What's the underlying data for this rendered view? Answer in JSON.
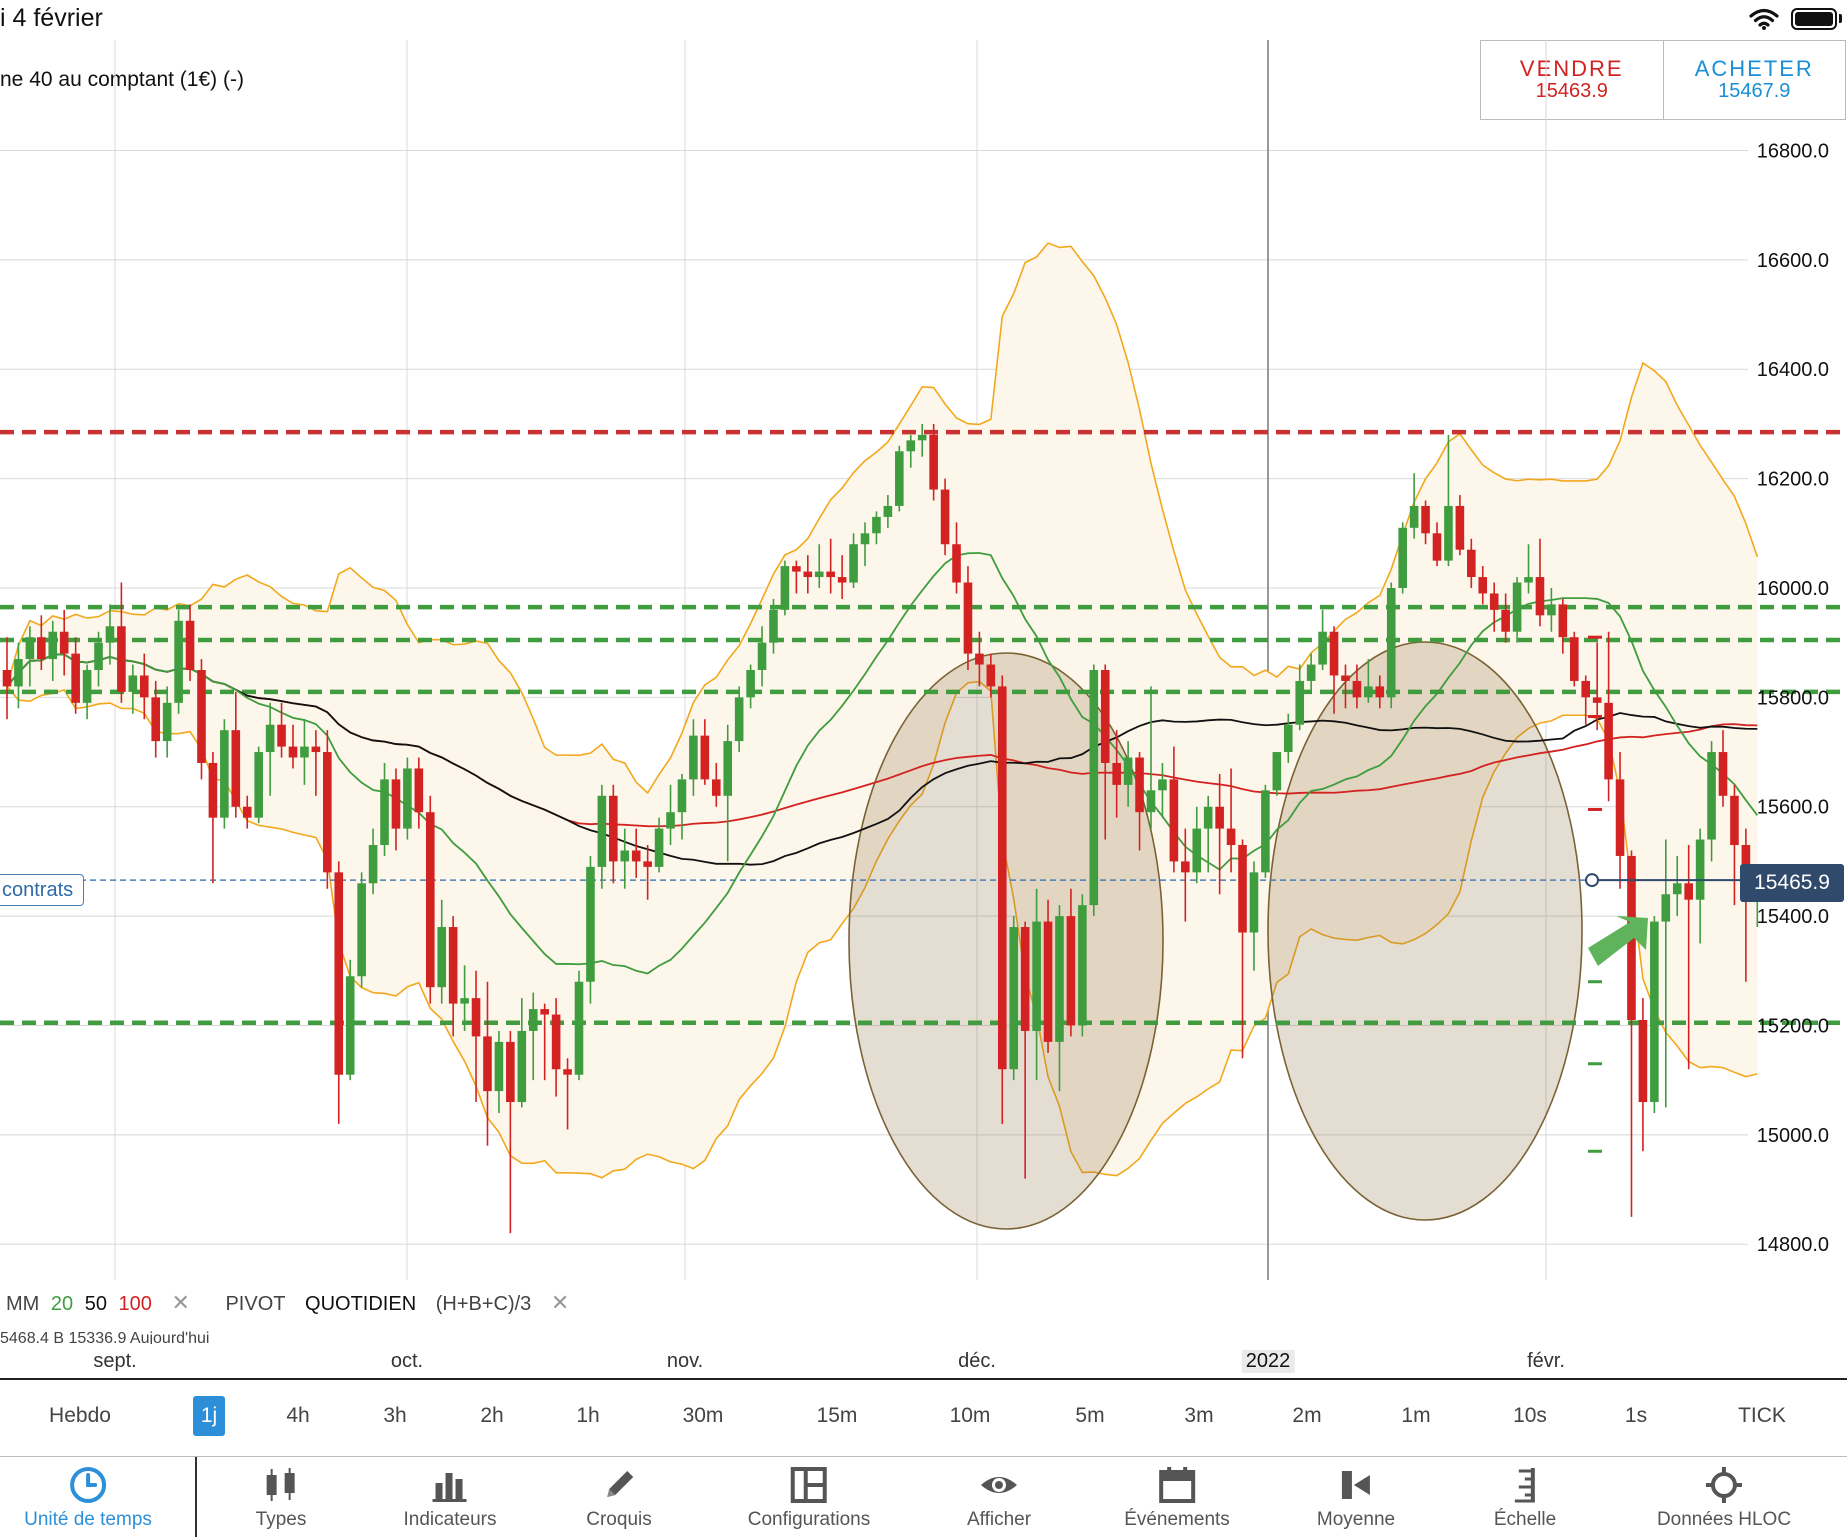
{
  "status": {
    "date": "i 4 février"
  },
  "instrument": {
    "name": "ne 40 au comptant (1€) (-)"
  },
  "trade": {
    "sell_label": "VENDRE",
    "sell_price": "15463.9",
    "buy_label": "ACHETER",
    "buy_price": "15467.9"
  },
  "price_axis": {
    "ticks": [
      "16800.0",
      "16600.0",
      "16400.0",
      "16200.0",
      "16000.0",
      "15800.0",
      "15600.0",
      "15400.0",
      "15200.0",
      "15000.0",
      "14800.0"
    ]
  },
  "current_price": "15465.9",
  "position_label": "contrats",
  "indicators": {
    "ma_label": "MM",
    "ma_20": "20",
    "ma_50": "50",
    "ma_100": "100",
    "pivot_label": "PIVOT",
    "pivot_period": "QUOTIDIEN",
    "pivot_formula": "(H+B+C)/3",
    "remove_glyph": "✕",
    "sub_text": "5468.4   B 15336.9   Aujourd'hui"
  },
  "date_axis": {
    "labels": [
      "sept.",
      "oct.",
      "nov.",
      "déc.",
      "2022",
      "févr."
    ]
  },
  "timeframes": {
    "items": [
      "Hebdo",
      "1j",
      "4h",
      "3h",
      "2h",
      "1h",
      "30m",
      "15m",
      "10m",
      "5m",
      "3m",
      "2m",
      "1m",
      "10s",
      "1s",
      "TICK"
    ],
    "active": "1j"
  },
  "toolbar": {
    "items": [
      "Unité de temps",
      "Types",
      "Indicateurs",
      "Croquis",
      "Configurations",
      "Afficher",
      "Événements",
      "Moyenne",
      "Échelle",
      "Données HLOC"
    ]
  },
  "colors": {
    "up": "#3f9d3f",
    "down": "#d32222",
    "bollinger": "#f2a81d",
    "ma20": "#3f9d3f",
    "ma50": "#111111",
    "ma100": "#d32222",
    "resistance": "#c83232",
    "support": "#3f9d3f",
    "accent": "#2e8fd9"
  },
  "chart_data": {
    "type": "candlestick",
    "y_axis_ticks": [
      16800,
      16600,
      16400,
      16200,
      16000,
      15800,
      15600,
      15400,
      15200,
      15000,
      14800
    ],
    "ylim": [
      14780,
      16900
    ],
    "x_labels": [
      "sept.",
      "oct.",
      "nov.",
      "déc.",
      "2022",
      "févr."
    ],
    "current_price": 15465.9,
    "resistance_line": 16285,
    "support_lines": [
      15965,
      15905,
      15810,
      15205
    ],
    "pivot_ticks_red": [
      15910,
      15765,
      15595
    ],
    "pivot_ticks_green": [
      15280,
      15130,
      14970
    ],
    "candles": [
      {
        "o": 15850,
        "h": 15910,
        "l": 15760,
        "c": 15820
      },
      {
        "o": 15820,
        "h": 15900,
        "l": 15780,
        "c": 15870
      },
      {
        "o": 15870,
        "h": 15930,
        "l": 15820,
        "c": 15910
      },
      {
        "o": 15910,
        "h": 15950,
        "l": 15850,
        "c": 15870
      },
      {
        "o": 15870,
        "h": 15940,
        "l": 15830,
        "c": 15920
      },
      {
        "o": 15920,
        "h": 15960,
        "l": 15840,
        "c": 15880
      },
      {
        "o": 15880,
        "h": 15910,
        "l": 15770,
        "c": 15790
      },
      {
        "o": 15790,
        "h": 15860,
        "l": 15760,
        "c": 15850
      },
      {
        "o": 15850,
        "h": 15920,
        "l": 15820,
        "c": 15900
      },
      {
        "o": 15900,
        "h": 15970,
        "l": 15860,
        "c": 15930
      },
      {
        "o": 15930,
        "h": 16010,
        "l": 15790,
        "c": 15810
      },
      {
        "o": 15810,
        "h": 15860,
        "l": 15770,
        "c": 15840
      },
      {
        "o": 15840,
        "h": 15880,
        "l": 15760,
        "c": 15800
      },
      {
        "o": 15800,
        "h": 15830,
        "l": 15690,
        "c": 15720
      },
      {
        "o": 15720,
        "h": 15820,
        "l": 15690,
        "c": 15790
      },
      {
        "o": 15790,
        "h": 15960,
        "l": 15770,
        "c": 15940
      },
      {
        "o": 15940,
        "h": 15970,
        "l": 15830,
        "c": 15850
      },
      {
        "o": 15850,
        "h": 15870,
        "l": 15650,
        "c": 15680
      },
      {
        "o": 15680,
        "h": 15700,
        "l": 15460,
        "c": 15580
      },
      {
        "o": 15580,
        "h": 15760,
        "l": 15560,
        "c": 15740
      },
      {
        "o": 15740,
        "h": 15810,
        "l": 15580,
        "c": 15600
      },
      {
        "o": 15600,
        "h": 15620,
        "l": 15560,
        "c": 15580
      },
      {
        "o": 15580,
        "h": 15710,
        "l": 15570,
        "c": 15700
      },
      {
        "o": 15700,
        "h": 15790,
        "l": 15620,
        "c": 15750
      },
      {
        "o": 15750,
        "h": 15790,
        "l": 15690,
        "c": 15710
      },
      {
        "o": 15710,
        "h": 15750,
        "l": 15670,
        "c": 15690
      },
      {
        "o": 15690,
        "h": 15760,
        "l": 15640,
        "c": 15710
      },
      {
        "o": 15710,
        "h": 15740,
        "l": 15620,
        "c": 15700
      },
      {
        "o": 15700,
        "h": 15740,
        "l": 15450,
        "c": 15480
      },
      {
        "o": 15480,
        "h": 15500,
        "l": 15020,
        "c": 15110
      },
      {
        "o": 15110,
        "h": 15320,
        "l": 15100,
        "c": 15290
      },
      {
        "o": 15290,
        "h": 15480,
        "l": 15270,
        "c": 15460
      },
      {
        "o": 15460,
        "h": 15560,
        "l": 15440,
        "c": 15530
      },
      {
        "o": 15530,
        "h": 15680,
        "l": 15510,
        "c": 15650
      },
      {
        "o": 15650,
        "h": 15670,
        "l": 15520,
        "c": 15560
      },
      {
        "o": 15560,
        "h": 15690,
        "l": 15540,
        "c": 15670
      },
      {
        "o": 15670,
        "h": 15690,
        "l": 15560,
        "c": 15590
      },
      {
        "o": 15590,
        "h": 15620,
        "l": 15240,
        "c": 15270
      },
      {
        "o": 15270,
        "h": 15430,
        "l": 15240,
        "c": 15380
      },
      {
        "o": 15380,
        "h": 15400,
        "l": 15180,
        "c": 15240
      },
      {
        "o": 15240,
        "h": 15310,
        "l": 15190,
        "c": 15250
      },
      {
        "o": 15250,
        "h": 15300,
        "l": 15060,
        "c": 15180
      },
      {
        "o": 15180,
        "h": 15280,
        "l": 14980,
        "c": 15080
      },
      {
        "o": 15080,
        "h": 15190,
        "l": 15040,
        "c": 15170
      },
      {
        "o": 15170,
        "h": 15190,
        "l": 14820,
        "c": 15060
      },
      {
        "o": 15060,
        "h": 15250,
        "l": 15050,
        "c": 15190
      },
      {
        "o": 15190,
        "h": 15260,
        "l": 15100,
        "c": 15230
      },
      {
        "o": 15230,
        "h": 15240,
        "l": 15100,
        "c": 15220
      },
      {
        "o": 15220,
        "h": 15250,
        "l": 15070,
        "c": 15120
      },
      {
        "o": 15120,
        "h": 15140,
        "l": 15010,
        "c": 15110
      },
      {
        "o": 15110,
        "h": 15300,
        "l": 15100,
        "c": 15280
      },
      {
        "o": 15280,
        "h": 15510,
        "l": 15240,
        "c": 15490
      },
      {
        "o": 15490,
        "h": 15640,
        "l": 15450,
        "c": 15620
      },
      {
        "o": 15620,
        "h": 15640,
        "l": 15460,
        "c": 15500
      },
      {
        "o": 15500,
        "h": 15560,
        "l": 15450,
        "c": 15520
      },
      {
        "o": 15520,
        "h": 15560,
        "l": 15470,
        "c": 15500
      },
      {
        "o": 15500,
        "h": 15530,
        "l": 15430,
        "c": 15490
      },
      {
        "o": 15490,
        "h": 15580,
        "l": 15480,
        "c": 15560
      },
      {
        "o": 15560,
        "h": 15640,
        "l": 15530,
        "c": 15590
      },
      {
        "o": 15590,
        "h": 15660,
        "l": 15540,
        "c": 15650
      },
      {
        "o": 15650,
        "h": 15760,
        "l": 15620,
        "c": 15730
      },
      {
        "o": 15730,
        "h": 15760,
        "l": 15640,
        "c": 15650
      },
      {
        "o": 15650,
        "h": 15680,
        "l": 15600,
        "c": 15620
      },
      {
        "o": 15620,
        "h": 15750,
        "l": 15500,
        "c": 15720
      },
      {
        "o": 15720,
        "h": 15820,
        "l": 15700,
        "c": 15800
      },
      {
        "o": 15800,
        "h": 15860,
        "l": 15780,
        "c": 15850
      },
      {
        "o": 15850,
        "h": 15930,
        "l": 15820,
        "c": 15900
      },
      {
        "o": 15900,
        "h": 15980,
        "l": 15880,
        "c": 15960
      },
      {
        "o": 15960,
        "h": 16050,
        "l": 15950,
        "c": 16040
      },
      {
        "o": 16040,
        "h": 16050,
        "l": 15990,
        "c": 16030
      },
      {
        "o": 16030,
        "h": 16060,
        "l": 15990,
        "c": 16020
      },
      {
        "o": 16020,
        "h": 16080,
        "l": 16000,
        "c": 16030
      },
      {
        "o": 16030,
        "h": 16090,
        "l": 15990,
        "c": 16020
      },
      {
        "o": 16020,
        "h": 16060,
        "l": 15980,
        "c": 16010
      },
      {
        "o": 16010,
        "h": 16100,
        "l": 16000,
        "c": 16080
      },
      {
        "o": 16080,
        "h": 16120,
        "l": 16040,
        "c": 16100
      },
      {
        "o": 16100,
        "h": 16140,
        "l": 16080,
        "c": 16130
      },
      {
        "o": 16130,
        "h": 16170,
        "l": 16110,
        "c": 16150
      },
      {
        "o": 16150,
        "h": 16260,
        "l": 16140,
        "c": 16250
      },
      {
        "o": 16250,
        "h": 16280,
        "l": 16220,
        "c": 16270
      },
      {
        "o": 16270,
        "h": 16300,
        "l": 16240,
        "c": 16280
      },
      {
        "o": 16280,
        "h": 16300,
        "l": 16160,
        "c": 16180
      },
      {
        "o": 16180,
        "h": 16200,
        "l": 16060,
        "c": 16080
      },
      {
        "o": 16080,
        "h": 16120,
        "l": 15990,
        "c": 16010
      },
      {
        "o": 16010,
        "h": 16040,
        "l": 15850,
        "c": 15880
      },
      {
        "o": 15880,
        "h": 15920,
        "l": 15820,
        "c": 15860
      },
      {
        "o": 15860,
        "h": 15880,
        "l": 15800,
        "c": 15820
      },
      {
        "o": 15820,
        "h": 15840,
        "l": 15020,
        "c": 15120
      },
      {
        "o": 15120,
        "h": 15400,
        "l": 15100,
        "c": 15380
      },
      {
        "o": 15380,
        "h": 15390,
        "l": 14920,
        "c": 15190
      },
      {
        "o": 15190,
        "h": 15450,
        "l": 15100,
        "c": 15390
      },
      {
        "o": 15390,
        "h": 15430,
        "l": 15150,
        "c": 15170
      },
      {
        "o": 15170,
        "h": 15420,
        "l": 15080,
        "c": 15400
      },
      {
        "o": 15400,
        "h": 15450,
        "l": 15180,
        "c": 15200
      },
      {
        "o": 15200,
        "h": 15440,
        "l": 15180,
        "c": 15420
      },
      {
        "o": 15420,
        "h": 15860,
        "l": 15400,
        "c": 15850
      },
      {
        "o": 15850,
        "h": 15860,
        "l": 15540,
        "c": 15680
      },
      {
        "o": 15680,
        "h": 15740,
        "l": 15580,
        "c": 15640
      },
      {
        "o": 15640,
        "h": 15720,
        "l": 15600,
        "c": 15690
      },
      {
        "o": 15690,
        "h": 15700,
        "l": 15520,
        "c": 15590
      },
      {
        "o": 15590,
        "h": 15820,
        "l": 15560,
        "c": 15630
      },
      {
        "o": 15630,
        "h": 15680,
        "l": 15580,
        "c": 15650
      },
      {
        "o": 15650,
        "h": 15710,
        "l": 15480,
        "c": 15500
      },
      {
        "o": 15500,
        "h": 15560,
        "l": 15390,
        "c": 15480
      },
      {
        "o": 15480,
        "h": 15600,
        "l": 15460,
        "c": 15560
      },
      {
        "o": 15560,
        "h": 15620,
        "l": 15480,
        "c": 15600
      },
      {
        "o": 15600,
        "h": 15660,
        "l": 15440,
        "c": 15560
      },
      {
        "o": 15560,
        "h": 15670,
        "l": 15480,
        "c": 15530
      },
      {
        "o": 15530,
        "h": 15540,
        "l": 15140,
        "c": 15370
      },
      {
        "o": 15370,
        "h": 15500,
        "l": 15300,
        "c": 15480
      },
      {
        "o": 15480,
        "h": 15640,
        "l": 15470,
        "c": 15630
      },
      {
        "o": 15630,
        "h": 15700,
        "l": 15620,
        "c": 15700
      },
      {
        "o": 15700,
        "h": 15770,
        "l": 15680,
        "c": 15750
      },
      {
        "o": 15750,
        "h": 15860,
        "l": 15740,
        "c": 15830
      },
      {
        "o": 15830,
        "h": 15880,
        "l": 15810,
        "c": 15860
      },
      {
        "o": 15860,
        "h": 15960,
        "l": 15850,
        "c": 15920
      },
      {
        "o": 15920,
        "h": 15930,
        "l": 15770,
        "c": 15840
      },
      {
        "o": 15840,
        "h": 15860,
        "l": 15780,
        "c": 15830
      },
      {
        "o": 15830,
        "h": 15860,
        "l": 15780,
        "c": 15800
      },
      {
        "o": 15800,
        "h": 15870,
        "l": 15790,
        "c": 15820
      },
      {
        "o": 15820,
        "h": 15840,
        "l": 15780,
        "c": 15800
      },
      {
        "o": 15800,
        "h": 16010,
        "l": 15780,
        "c": 16000
      },
      {
        "o": 16000,
        "h": 16120,
        "l": 15990,
        "c": 16110
      },
      {
        "o": 16110,
        "h": 16210,
        "l": 16090,
        "c": 16150
      },
      {
        "o": 16150,
        "h": 16160,
        "l": 16080,
        "c": 16100
      },
      {
        "o": 16100,
        "h": 16120,
        "l": 16040,
        "c": 16050
      },
      {
        "o": 16050,
        "h": 16280,
        "l": 16040,
        "c": 16150
      },
      {
        "o": 16150,
        "h": 16170,
        "l": 16060,
        "c": 16070
      },
      {
        "o": 16070,
        "h": 16090,
        "l": 16000,
        "c": 16020
      },
      {
        "o": 16020,
        "h": 16040,
        "l": 15970,
        "c": 15990
      },
      {
        "o": 15990,
        "h": 16010,
        "l": 15920,
        "c": 15960
      },
      {
        "o": 15960,
        "h": 15990,
        "l": 15900,
        "c": 15920
      },
      {
        "o": 15920,
        "h": 16020,
        "l": 15900,
        "c": 16010
      },
      {
        "o": 16010,
        "h": 16080,
        "l": 15990,
        "c": 16020
      },
      {
        "o": 16020,
        "h": 16090,
        "l": 15930,
        "c": 15950
      },
      {
        "o": 15950,
        "h": 16000,
        "l": 15920,
        "c": 15970
      },
      {
        "o": 15970,
        "h": 15980,
        "l": 15880,
        "c": 15910
      },
      {
        "o": 15910,
        "h": 15920,
        "l": 15820,
        "c": 15830
      },
      {
        "o": 15830,
        "h": 15840,
        "l": 15750,
        "c": 15800
      },
      {
        "o": 15800,
        "h": 15900,
        "l": 15740,
        "c": 15790
      },
      {
        "o": 15790,
        "h": 15920,
        "l": 15610,
        "c": 15650
      },
      {
        "o": 15650,
        "h": 15700,
        "l": 15450,
        "c": 15510
      },
      {
        "o": 15510,
        "h": 15520,
        "l": 14850,
        "c": 15210
      },
      {
        "o": 15210,
        "h": 15250,
        "l": 14970,
        "c": 15060
      },
      {
        "o": 15060,
        "h": 15400,
        "l": 15040,
        "c": 15390
      },
      {
        "o": 15390,
        "h": 15540,
        "l": 15050,
        "c": 15440
      },
      {
        "o": 15440,
        "h": 15510,
        "l": 15400,
        "c": 15460
      },
      {
        "o": 15460,
        "h": 15530,
        "l": 15120,
        "c": 15430
      },
      {
        "o": 15430,
        "h": 15560,
        "l": 15350,
        "c": 15540
      },
      {
        "o": 15540,
        "h": 15720,
        "l": 15500,
        "c": 15700
      },
      {
        "o": 15700,
        "h": 15740,
        "l": 15600,
        "c": 15620
      },
      {
        "o": 15620,
        "h": 15640,
        "l": 15420,
        "c": 15530
      },
      {
        "o": 15530,
        "h": 15560,
        "l": 15280,
        "c": 15430
      },
      {
        "o": 15430,
        "h": 15480,
        "l": 15380,
        "c": 15466
      }
    ]
  }
}
